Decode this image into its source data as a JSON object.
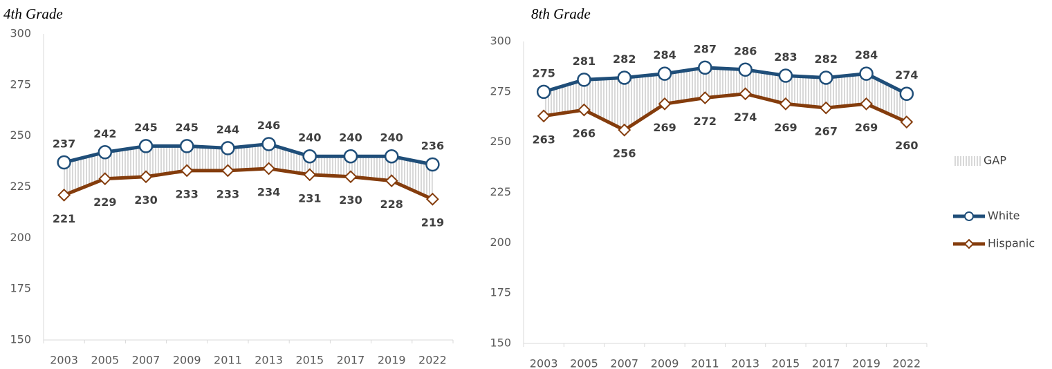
{
  "chart_data": [
    {
      "type": "line",
      "title": "4th Grade",
      "categories": [
        "2003",
        "2005",
        "2007",
        "2009",
        "2011",
        "2013",
        "2015",
        "2017",
        "2019",
        "2022"
      ],
      "series": [
        {
          "name": "White",
          "color": "#1f4e79",
          "marker": "circle",
          "values": [
            237,
            242,
            245,
            245,
            244,
            246,
            240,
            240,
            240,
            236
          ]
        },
        {
          "name": "Hispanic",
          "color": "#843c0c",
          "marker": "diamond",
          "values": [
            221,
            229,
            230,
            233,
            233,
            234,
            231,
            230,
            228,
            219
          ]
        }
      ],
      "ylim": [
        150,
        300
      ],
      "yticks": [
        150,
        175,
        200,
        225,
        250,
        275,
        300
      ],
      "grid": false,
      "legend": false
    },
    {
      "type": "line",
      "title": "8th Grade",
      "categories": [
        "2003",
        "2005",
        "2007",
        "2009",
        "2011",
        "2013",
        "2015",
        "2017",
        "2019",
        "2022"
      ],
      "series": [
        {
          "name": "White",
          "color": "#1f4e79",
          "marker": "circle",
          "values": [
            275,
            281,
            282,
            284,
            287,
            286,
            283,
            282,
            284,
            274
          ]
        },
        {
          "name": "Hispanic",
          "color": "#843c0c",
          "marker": "diamond",
          "values": [
            263,
            266,
            256,
            269,
            272,
            274,
            269,
            267,
            269,
            260
          ]
        }
      ],
      "gap": {
        "name": "GAP",
        "color": "#b0b0b0"
      },
      "ylim": [
        150,
        300
      ],
      "yticks": [
        150,
        175,
        200,
        225,
        250,
        275,
        300
      ],
      "grid": false,
      "legend": true
    }
  ]
}
